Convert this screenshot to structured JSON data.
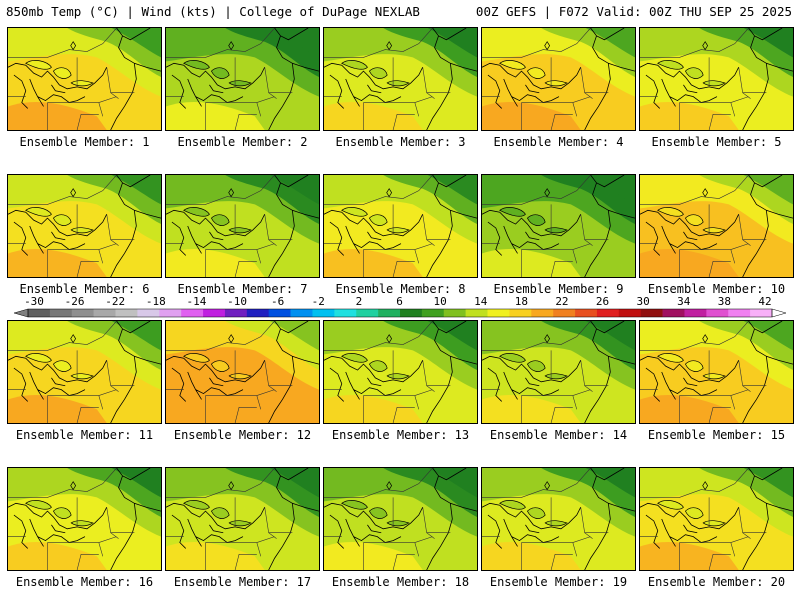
{
  "header": {
    "left": "850mb Temp (°C) | Wind (kts) | College of DuPage NEXLAB",
    "right": "00Z GEFS | F072 Valid: 00Z THU SEP 25 2025"
  },
  "colorbar": {
    "ticks": [
      "-30",
      "-26",
      "-22",
      "-18",
      "-14",
      "-10",
      "-6",
      "-2",
      "2",
      "6",
      "10",
      "14",
      "18",
      "22",
      "26",
      "30",
      "34",
      "38",
      "42"
    ],
    "colors": [
      "#606060",
      "#787878",
      "#8f8f8f",
      "#a8a8a8",
      "#c0c0c0",
      "#d8c8e8",
      "#e0a0f0",
      "#e060f0",
      "#c020e0",
      "#7020c0",
      "#2020c0",
      "#0050e0",
      "#0090f0",
      "#00c0f0",
      "#20e0e0",
      "#20d0a0",
      "#20b060",
      "#208020",
      "#40a020",
      "#80c020",
      "#c0e020",
      "#f0f020",
      "#f8d020",
      "#f8a820",
      "#f08020",
      "#e85020",
      "#e02020",
      "#c01010",
      "#901010",
      "#a01060",
      "#c020a0",
      "#e050d0",
      "#f080f0",
      "#f8b0f8"
    ]
  },
  "panels": [
    {
      "label": "Ensemble Member: 1",
      "tone": 0.55
    },
    {
      "label": "Ensemble Member: 2",
      "tone": 0.2
    },
    {
      "label": "Ensemble Member: 3",
      "tone": 0.35
    },
    {
      "label": "Ensemble Member: 4",
      "tone": 0.6
    },
    {
      "label": "Ensemble Member: 5",
      "tone": 0.4
    },
    {
      "label": "Ensemble Member: 6",
      "tone": 0.5
    },
    {
      "label": "Ensemble Member: 7",
      "tone": 0.25
    },
    {
      "label": "Ensemble Member: 8",
      "tone": 0.45
    },
    {
      "label": "Ensemble Member: 9",
      "tone": 0.15
    },
    {
      "label": "Ensemble Member: 10",
      "tone": 0.65
    },
    {
      "label": "Ensemble Member: 11",
      "tone": 0.55
    },
    {
      "label": "Ensemble Member: 12",
      "tone": 0.75
    },
    {
      "label": "Ensemble Member: 13",
      "tone": 0.35
    },
    {
      "label": "Ensemble Member: 14",
      "tone": 0.3
    },
    {
      "label": "Ensemble Member: 15",
      "tone": 0.6
    },
    {
      "label": "Ensemble Member: 16",
      "tone": 0.4
    },
    {
      "label": "Ensemble Member: 17",
      "tone": 0.3
    },
    {
      "label": "Ensemble Member: 18",
      "tone": 0.25
    },
    {
      "label": "Ensemble Member: 19",
      "tone": 0.35
    },
    {
      "label": "Ensemble Member: 20",
      "tone": 0.5
    }
  ]
}
